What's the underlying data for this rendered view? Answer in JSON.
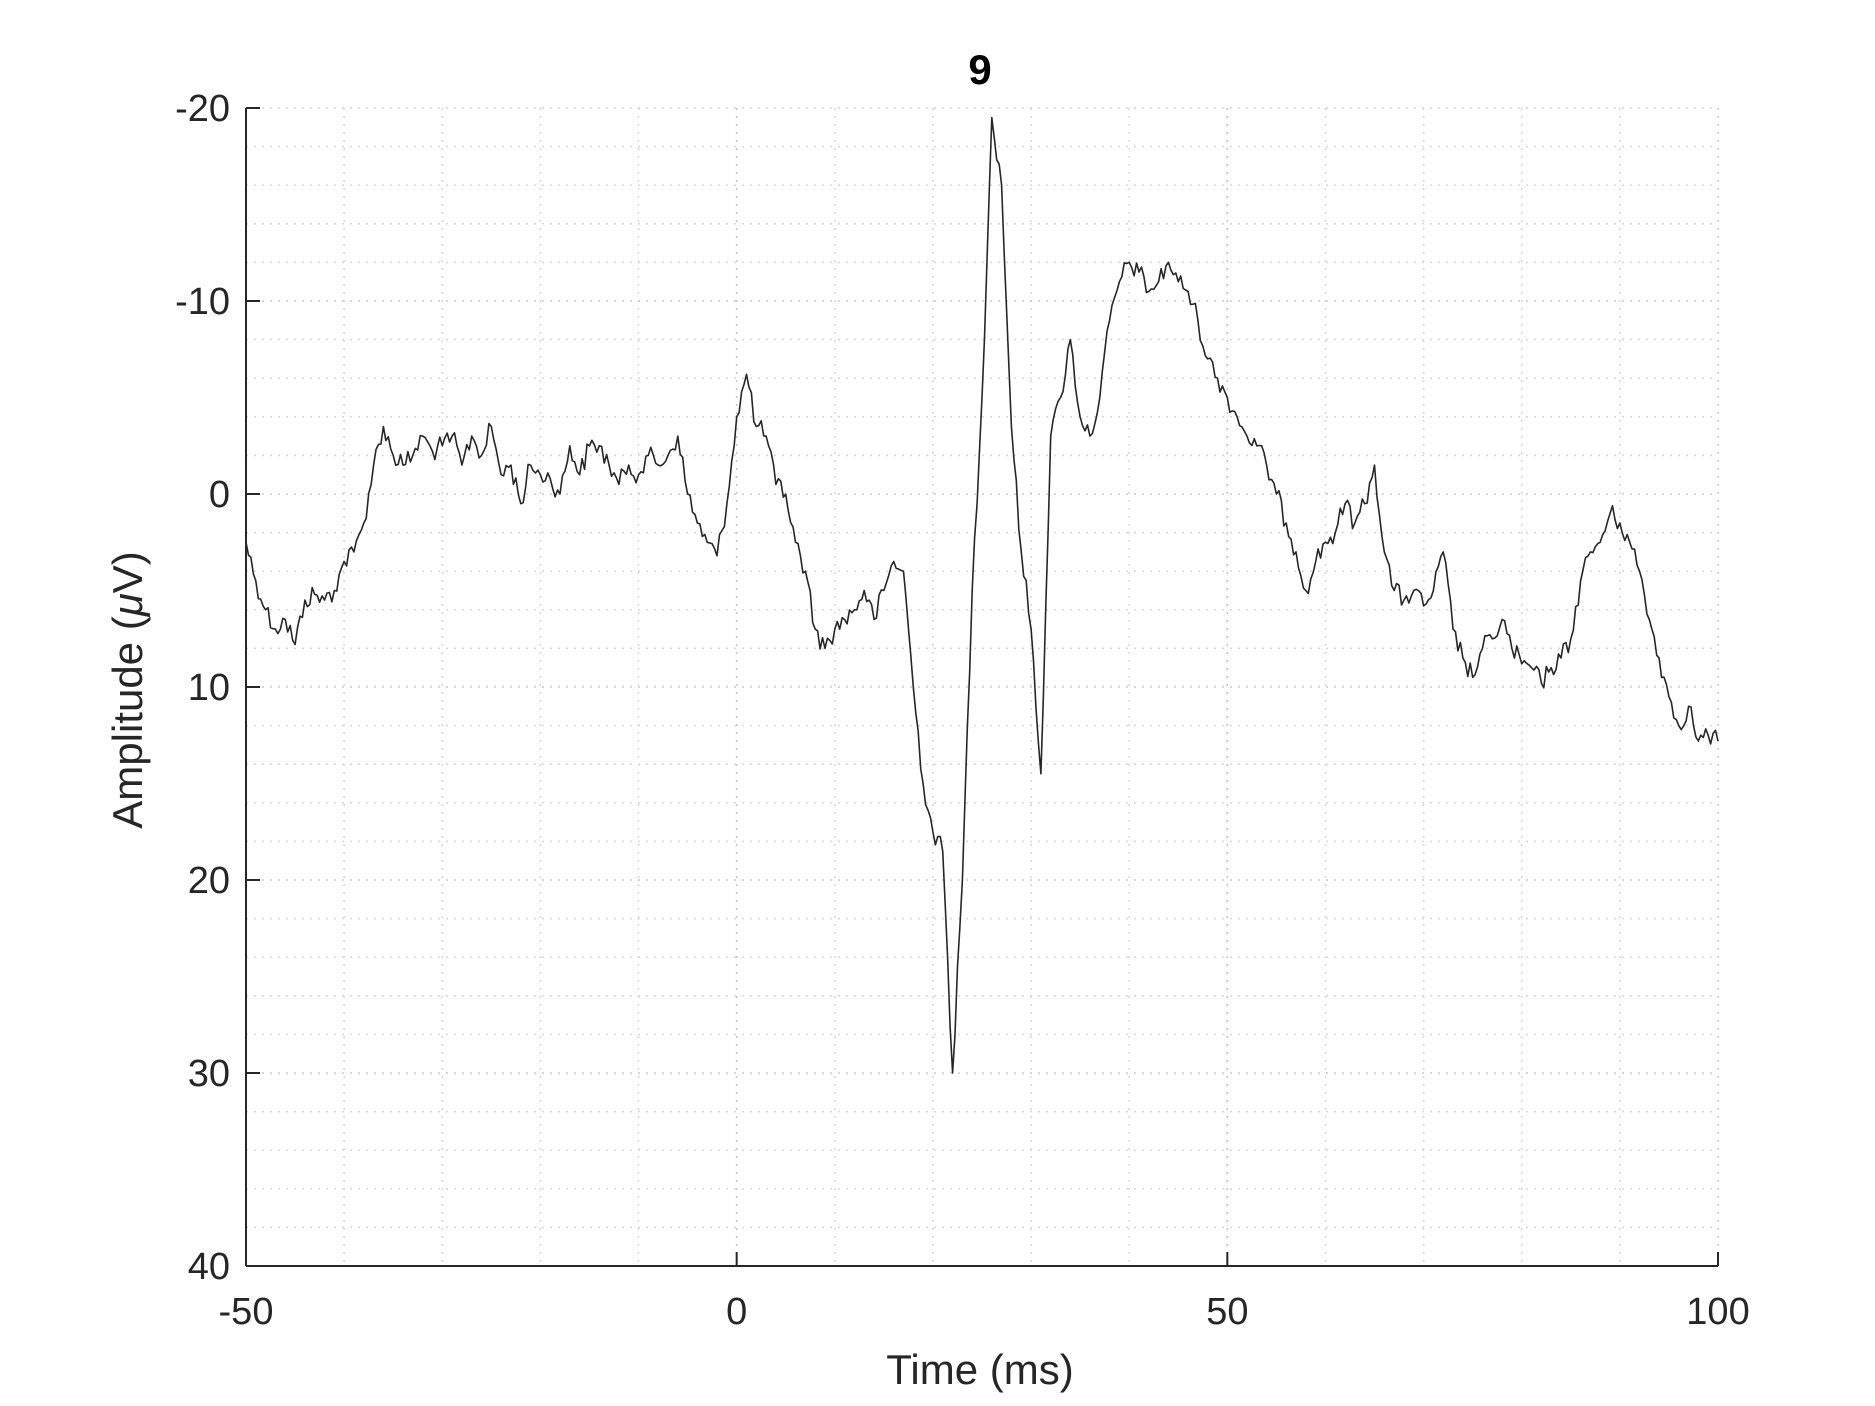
{
  "chart_data": {
    "type": "line",
    "title": "9",
    "xlabel": "Time (ms)",
    "ylabel_prefix": "Amplitude (",
    "ylabel_mu": "μ",
    "ylabel_suffix": "V)",
    "xlim": [
      -50,
      100
    ],
    "ylim": [
      -20,
      40
    ],
    "y_reversed": true,
    "grid": true,
    "minor_grid": true,
    "x_ticks": [
      -50,
      0,
      50,
      100
    ],
    "x_tick_labels": [
      "-50",
      "0",
      "50",
      "100"
    ],
    "x_minor_step": 10,
    "y_ticks": [
      -20,
      -10,
      0,
      10,
      20,
      30,
      40
    ],
    "y_tick_labels": [
      "-20",
      "-10",
      "0",
      "10",
      "20",
      "30",
      "40"
    ],
    "y_minor_step": 2,
    "line_color": "#262626",
    "series": [
      {
        "x": [
          -50,
          -49,
          -48,
          -47,
          -46,
          -45,
          -44,
          -43,
          -42,
          -41,
          -40,
          -39,
          -38,
          -37,
          -36,
          -35,
          -34,
          -33,
          -32,
          -31,
          -30,
          -29,
          -28,
          -27,
          -26,
          -25,
          -24,
          -23,
          -22,
          -21,
          -20,
          -19,
          -18,
          -17,
          -16,
          -15,
          -14,
          -13,
          -12,
          -11,
          -10,
          -9,
          -8,
          -7,
          -6,
          -5,
          -4,
          -3,
          -2,
          -1,
          0,
          1,
          2,
          3,
          4,
          5,
          6,
          7,
          8,
          9,
          10,
          11,
          12,
          13,
          14,
          15,
          16,
          17,
          18,
          19,
          20,
          21,
          22,
          23,
          24,
          25,
          26,
          27,
          28,
          29,
          30,
          31,
          32,
          33,
          34,
          35,
          36,
          37,
          38,
          39,
          40,
          41,
          42,
          43,
          44,
          45,
          46,
          47,
          48,
          49,
          50,
          51,
          52,
          53,
          54,
          55,
          56,
          57,
          58,
          59,
          60,
          61,
          62,
          63,
          64,
          65,
          66,
          67,
          68,
          69,
          70,
          71,
          72,
          73,
          74,
          75,
          76,
          77,
          78,
          79,
          80,
          81,
          82,
          83,
          84,
          85,
          86,
          87,
          88,
          89,
          90,
          91,
          92,
          93,
          94,
          95,
          96,
          97,
          98,
          99,
          100
        ],
        "y": [
          2.5,
          4.5,
          6,
          7,
          6.5,
          7.8,
          5.5,
          5.2,
          5.5,
          5,
          3.5,
          3,
          1.5,
          -1.5,
          -3.5,
          -2,
          -1.5,
          -2,
          -3,
          -2.2,
          -2.5,
          -3,
          -1.5,
          -3,
          -2,
          -3.5,
          -1,
          -1.5,
          0.5,
          -1.5,
          -1,
          -0.8,
          0,
          -2.5,
          -1,
          -2.5,
          -2.5,
          -1.5,
          -0.5,
          -1.5,
          -1,
          -2,
          -1.5,
          -2,
          -3,
          0,
          1.5,
          2.5,
          3.2,
          0.5,
          -4,
          -6.2,
          -3.5,
          -3,
          -0.5,
          0,
          2.5,
          4,
          7,
          8,
          7,
          6.5,
          6,
          5,
          6.5,
          5,
          3.5,
          4,
          10,
          15,
          17.5,
          18.5,
          30,
          20,
          5,
          -5,
          -19.5,
          -16,
          -3.5,
          3,
          7,
          14.5,
          -3,
          -5,
          -8,
          -4,
          -3,
          -5,
          -9,
          -11,
          -12,
          -11.5,
          -10.5,
          -11,
          -12,
          -11,
          -10.5,
          -9,
          -7,
          -6,
          -5,
          -4,
          -3,
          -2.5,
          -1.5,
          0,
          1.5,
          3,
          5,
          3.5,
          2.5,
          2,
          0.5,
          1.5,
          0.5,
          -1.5,
          3,
          5,
          5.5,
          5,
          5.8,
          5,
          3,
          7,
          8.5,
          9.5,
          8,
          7.5,
          6.5,
          8,
          8.8,
          9,
          9.8,
          9,
          8.5,
          7.5,
          4.5,
          3,
          2.5,
          1,
          1.5,
          2.5,
          4,
          6.5,
          8.5,
          10.5,
          12,
          11,
          12.8,
          12.5,
          12.8
        ],
        "samples_per_ms": 4,
        "jitter_uv": 0.55
      }
    ]
  }
}
